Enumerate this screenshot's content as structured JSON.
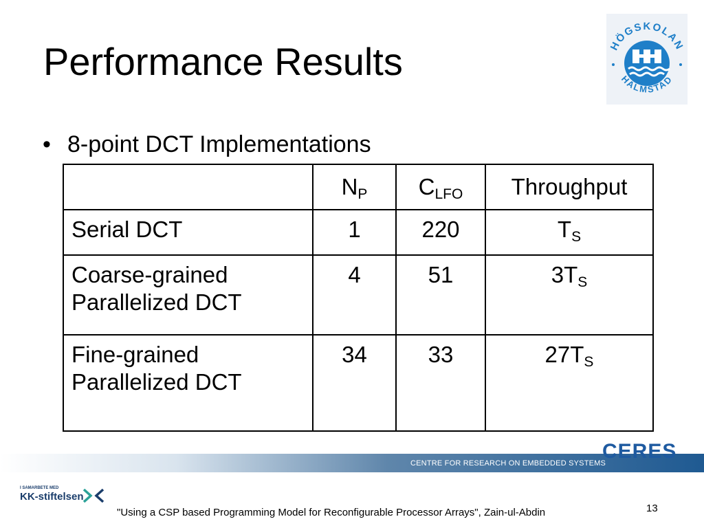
{
  "slide": {
    "title": "Performance Results",
    "bullet_mark": "•",
    "bullet": "8-point DCT Implementations"
  },
  "table": {
    "header": {
      "blank": "",
      "np_main": "N",
      "np_sub": "P",
      "clfo_main": "C",
      "clfo_sub": "LFO",
      "throughput": "Throughput"
    },
    "rows": [
      {
        "label_line1": "Serial DCT",
        "label_line2": "",
        "np": "1",
        "clfo": "220",
        "tp_main": "T",
        "tp_sub": "S"
      },
      {
        "label_line1": "Coarse-grained",
        "label_line2": "Parallelized DCT",
        "np": "4",
        "clfo": "51",
        "tp_main": "3T",
        "tp_sub": "S"
      },
      {
        "label_line1": "Fine-grained",
        "label_line2": "Parallelized DCT",
        "np": "34",
        "clfo": "33",
        "tp_main": "27T",
        "tp_sub": "S"
      }
    ]
  },
  "logo": {
    "top_text": "HÖGSKOLAN",
    "bottom_text": "HALMSTAD",
    "color": "#1f7fc8"
  },
  "branding": {
    "ceres": "CERES",
    "centre": "CENTRE FOR RESEARCH ON EMBEDDED SYSTEMS",
    "kk_small": "I SAMARBETE MED",
    "kk_name": "KK-stiftelsen",
    "brand_blue": "#1e5aa0"
  },
  "footer": {
    "citation": "\"Using a CSP based Programming Model for Reconfigurable Processor Arrays\", Zain-ul-Abdin",
    "page_number": "13"
  }
}
